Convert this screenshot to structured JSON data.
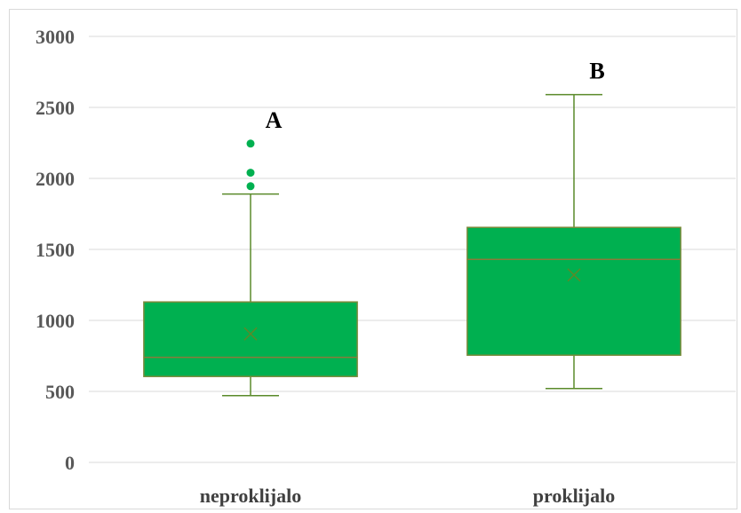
{
  "chart_data": {
    "type": "box",
    "categories": [
      "neproklijalo",
      "proklijalo"
    ],
    "ylim": [
      0,
      3000
    ],
    "yticks": [
      0,
      500,
      1000,
      1500,
      2000,
      2500,
      3000
    ],
    "grid": true,
    "box_color": "#00b050",
    "groups": [
      {
        "category": "neproklijalo",
        "whisker_low": 470,
        "q1": 605,
        "median": 740,
        "q3": 1130,
        "whisker_high": 1890,
        "mean": 905,
        "outliers": [
          1945,
          2040,
          2245
        ],
        "letter": "A"
      },
      {
        "category": "proklijalo",
        "whisker_low": 520,
        "q1": 755,
        "median": 1430,
        "q3": 1655,
        "whisker_high": 2590,
        "mean": 1320,
        "outliers": [],
        "letter": "B"
      }
    ]
  }
}
